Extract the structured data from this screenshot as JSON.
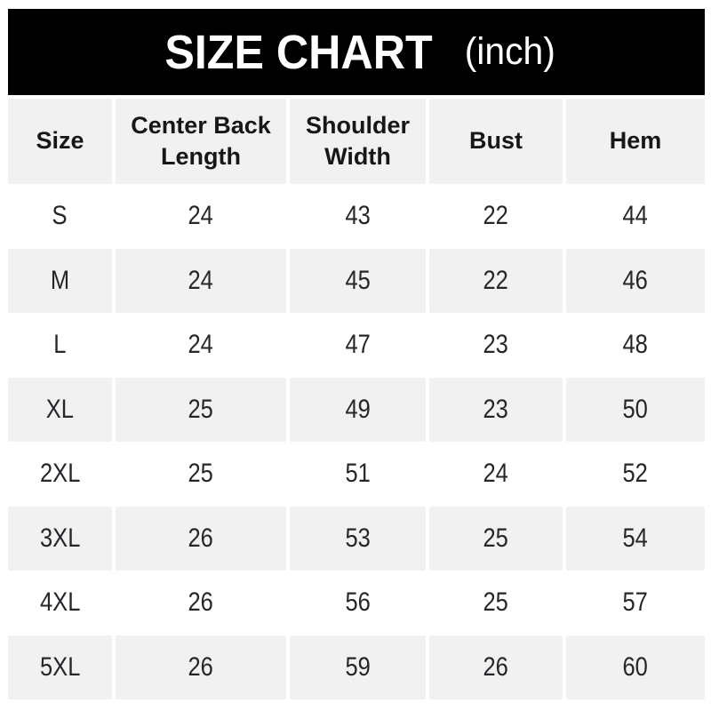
{
  "title": {
    "main": "SIZE CHART",
    "unit": "(inch)"
  },
  "colors": {
    "title_bar_bg": "#000000",
    "title_text": "#ffffff",
    "alt_row_bg": "#f1f1f2",
    "table_text": "#26262a",
    "page_bg": "#ffffff"
  },
  "chart_data": {
    "type": "table",
    "title": "SIZE CHART",
    "unit": "(inch)",
    "columns": [
      "Size",
      "Center Back Length",
      "Shoulder Width",
      "Bust",
      "Hem"
    ],
    "rows": [
      [
        "S",
        24,
        43,
        22,
        44
      ],
      [
        "M",
        24,
        45,
        22,
        46
      ],
      [
        "L",
        24,
        47,
        23,
        48
      ],
      [
        "XL",
        25,
        49,
        23,
        50
      ],
      [
        "2XL",
        25,
        51,
        24,
        52
      ],
      [
        "3XL",
        26,
        53,
        25,
        54
      ],
      [
        "4XL",
        26,
        56,
        25,
        57
      ],
      [
        "5XL",
        26,
        59,
        26,
        60
      ]
    ],
    "layout": {
      "header_row_shaded": true,
      "alternating_rows": "header gray, then white/gray alternating",
      "column_gutters": true
    }
  }
}
